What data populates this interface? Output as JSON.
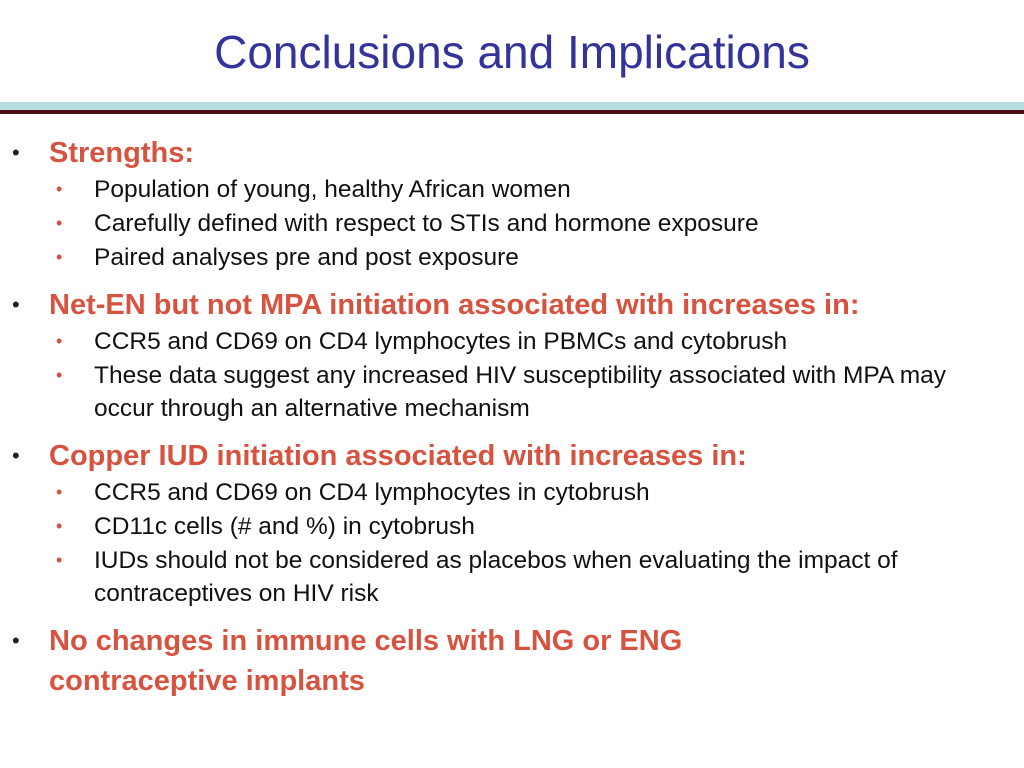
{
  "slide": {
    "title": "Conclusions and Implications",
    "colors": {
      "title": "#333399",
      "heading": "#d6533f",
      "body": "#111111",
      "rule_light": "#b8dde0",
      "rule_dark": "#4a0f14"
    },
    "sections": [
      {
        "heading": "Strengths:",
        "items": [
          "Population of young, healthy African women",
          "Carefully defined with respect to STIs and hormone exposure",
          "Paired analyses pre and post exposure"
        ]
      },
      {
        "heading": "Net-EN but not MPA initiation associated with increases in:",
        "items": [
          "CCR5 and CD69 on CD4 lymphocytes in PBMCs and cytobrush",
          "These data suggest any increased HIV susceptibility associated with MPA may occur through an alternative mechanism"
        ]
      },
      {
        "heading": "Copper IUD initiation associated with increases in:",
        "items": [
          "CCR5 and CD69 on CD4 lymphocytes in cytobrush",
          "CD11c cells (# and %) in cytobrush",
          "IUDs should not be considered as placebos when evaluating the impact of contraceptives on HIV risk"
        ]
      },
      {
        "heading": "No changes in immune cells with LNG or ENG contraceptive implants",
        "items": []
      }
    ]
  }
}
